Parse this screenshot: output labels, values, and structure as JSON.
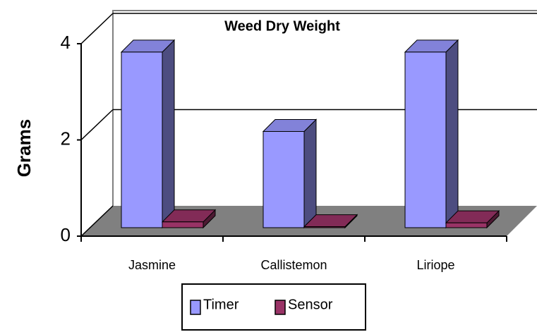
{
  "chart_data": {
    "type": "bar3d",
    "title": "Weed Dry Weight",
    "y_label": "Grams",
    "categories": [
      "Jasmine",
      "Callistemon",
      "Liriope"
    ],
    "series": [
      {
        "name": "Timer",
        "color": "#9999ff",
        "values": [
          3.65,
          2.0,
          3.65
        ]
      },
      {
        "name": "Sensor",
        "color": "#993366",
        "values": [
          0.12,
          0.02,
          0.1
        ]
      }
    ],
    "ylim": [
      0,
      4
    ],
    "yticks": [
      0,
      2,
      4
    ],
    "grid": true
  }
}
